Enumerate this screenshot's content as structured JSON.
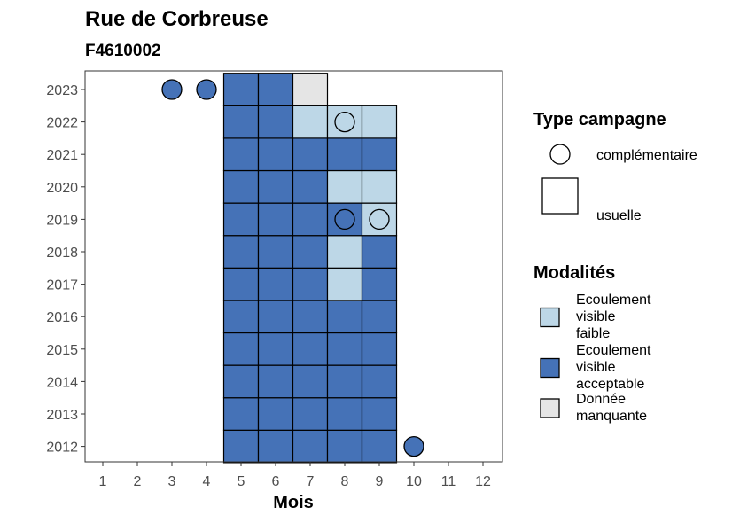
{
  "chart_data": {
    "type": "heatmap",
    "title": "Rue de Corbreuse",
    "subtitle": "F4610002",
    "xlabel": "Mois",
    "ylabel": "",
    "x_ticks": [
      "1",
      "2",
      "3",
      "4",
      "5",
      "6",
      "7",
      "8",
      "9",
      "10",
      "11",
      "12"
    ],
    "y_ticks": [
      "2012",
      "2013",
      "2014",
      "2015",
      "2016",
      "2017",
      "2018",
      "2019",
      "2020",
      "2021",
      "2022",
      "2023"
    ],
    "grid": false,
    "legend_position": "right",
    "legends": {
      "type_campagne": {
        "title": "Type campagne",
        "items": [
          {
            "key": "complementaire",
            "label": "complémentaire",
            "shape": "circle"
          },
          {
            "key": "usuelle",
            "label": "usuelle",
            "shape": "square"
          }
        ]
      },
      "modalites": {
        "title": "Modalités",
        "items": [
          {
            "key": "faible",
            "label_lines": [
              "Ecoulement",
              "visible",
              "faible"
            ],
            "color": "#BDD7E7"
          },
          {
            "key": "acceptable",
            "label_lines": [
              "Ecoulement",
              "visible",
              "acceptable"
            ],
            "color": "#4572B7"
          },
          {
            "key": "manquante",
            "label_lines": [
              "Donnée",
              "manquante"
            ],
            "color": "#E5E5E5"
          }
        ]
      }
    },
    "observations": [
      {
        "year": 2012,
        "month": 5,
        "type": "usuelle",
        "modalite": "acceptable"
      },
      {
        "year": 2012,
        "month": 6,
        "type": "usuelle",
        "modalite": "acceptable"
      },
      {
        "year": 2012,
        "month": 7,
        "type": "usuelle",
        "modalite": "acceptable"
      },
      {
        "year": 2012,
        "month": 8,
        "type": "usuelle",
        "modalite": "acceptable"
      },
      {
        "year": 2012,
        "month": 9,
        "type": "usuelle",
        "modalite": "acceptable"
      },
      {
        "year": 2012,
        "month": 10,
        "type": "complementaire",
        "modalite": "acceptable"
      },
      {
        "year": 2013,
        "month": 5,
        "type": "usuelle",
        "modalite": "acceptable"
      },
      {
        "year": 2013,
        "month": 6,
        "type": "usuelle",
        "modalite": "acceptable"
      },
      {
        "year": 2013,
        "month": 7,
        "type": "usuelle",
        "modalite": "acceptable"
      },
      {
        "year": 2013,
        "month": 8,
        "type": "usuelle",
        "modalite": "acceptable"
      },
      {
        "year": 2013,
        "month": 9,
        "type": "usuelle",
        "modalite": "acceptable"
      },
      {
        "year": 2014,
        "month": 5,
        "type": "usuelle",
        "modalite": "acceptable"
      },
      {
        "year": 2014,
        "month": 6,
        "type": "usuelle",
        "modalite": "acceptable"
      },
      {
        "year": 2014,
        "month": 7,
        "type": "usuelle",
        "modalite": "acceptable"
      },
      {
        "year": 2014,
        "month": 8,
        "type": "usuelle",
        "modalite": "acceptable"
      },
      {
        "year": 2014,
        "month": 9,
        "type": "usuelle",
        "modalite": "acceptable"
      },
      {
        "year": 2015,
        "month": 5,
        "type": "usuelle",
        "modalite": "acceptable"
      },
      {
        "year": 2015,
        "month": 6,
        "type": "usuelle",
        "modalite": "acceptable"
      },
      {
        "year": 2015,
        "month": 7,
        "type": "usuelle",
        "modalite": "acceptable"
      },
      {
        "year": 2015,
        "month": 8,
        "type": "usuelle",
        "modalite": "acceptable"
      },
      {
        "year": 2015,
        "month": 9,
        "type": "usuelle",
        "modalite": "acceptable"
      },
      {
        "year": 2016,
        "month": 5,
        "type": "usuelle",
        "modalite": "acceptable"
      },
      {
        "year": 2016,
        "month": 6,
        "type": "usuelle",
        "modalite": "acceptable"
      },
      {
        "year": 2016,
        "month": 7,
        "type": "usuelle",
        "modalite": "acceptable"
      },
      {
        "year": 2016,
        "month": 8,
        "type": "usuelle",
        "modalite": "acceptable"
      },
      {
        "year": 2016,
        "month": 9,
        "type": "usuelle",
        "modalite": "acceptable"
      },
      {
        "year": 2017,
        "month": 5,
        "type": "usuelle",
        "modalite": "acceptable"
      },
      {
        "year": 2017,
        "month": 6,
        "type": "usuelle",
        "modalite": "acceptable"
      },
      {
        "year": 2017,
        "month": 7,
        "type": "usuelle",
        "modalite": "acceptable"
      },
      {
        "year": 2017,
        "month": 8,
        "type": "usuelle",
        "modalite": "faible"
      },
      {
        "year": 2017,
        "month": 9,
        "type": "usuelle",
        "modalite": "acceptable"
      },
      {
        "year": 2018,
        "month": 5,
        "type": "usuelle",
        "modalite": "acceptable"
      },
      {
        "year": 2018,
        "month": 6,
        "type": "usuelle",
        "modalite": "acceptable"
      },
      {
        "year": 2018,
        "month": 7,
        "type": "usuelle",
        "modalite": "acceptable"
      },
      {
        "year": 2018,
        "month": 8,
        "type": "usuelle",
        "modalite": "faible"
      },
      {
        "year": 2018,
        "month": 9,
        "type": "usuelle",
        "modalite": "acceptable"
      },
      {
        "year": 2019,
        "month": 5,
        "type": "usuelle",
        "modalite": "acceptable"
      },
      {
        "year": 2019,
        "month": 6,
        "type": "usuelle",
        "modalite": "acceptable"
      },
      {
        "year": 2019,
        "month": 7,
        "type": "usuelle",
        "modalite": "acceptable"
      },
      {
        "year": 2019,
        "month": 8,
        "type": "usuelle",
        "modalite": "acceptable"
      },
      {
        "year": 2019,
        "month": 8,
        "type": "complementaire",
        "modalite": "acceptable"
      },
      {
        "year": 2019,
        "month": 9,
        "type": "usuelle",
        "modalite": "faible"
      },
      {
        "year": 2019,
        "month": 9,
        "type": "complementaire",
        "modalite": "faible"
      },
      {
        "year": 2020,
        "month": 5,
        "type": "usuelle",
        "modalite": "acceptable"
      },
      {
        "year": 2020,
        "month": 6,
        "type": "usuelle",
        "modalite": "acceptable"
      },
      {
        "year": 2020,
        "month": 7,
        "type": "usuelle",
        "modalite": "acceptable"
      },
      {
        "year": 2020,
        "month": 8,
        "type": "usuelle",
        "modalite": "faible"
      },
      {
        "year": 2020,
        "month": 9,
        "type": "usuelle",
        "modalite": "faible"
      },
      {
        "year": 2021,
        "month": 5,
        "type": "usuelle",
        "modalite": "acceptable"
      },
      {
        "year": 2021,
        "month": 6,
        "type": "usuelle",
        "modalite": "acceptable"
      },
      {
        "year": 2021,
        "month": 7,
        "type": "usuelle",
        "modalite": "acceptable"
      },
      {
        "year": 2021,
        "month": 8,
        "type": "usuelle",
        "modalite": "acceptable"
      },
      {
        "year": 2021,
        "month": 9,
        "type": "usuelle",
        "modalite": "acceptable"
      },
      {
        "year": 2022,
        "month": 5,
        "type": "usuelle",
        "modalite": "acceptable"
      },
      {
        "year": 2022,
        "month": 6,
        "type": "usuelle",
        "modalite": "acceptable"
      },
      {
        "year": 2022,
        "month": 7,
        "type": "usuelle",
        "modalite": "faible"
      },
      {
        "year": 2022,
        "month": 8,
        "type": "usuelle",
        "modalite": "faible"
      },
      {
        "year": 2022,
        "month": 8,
        "type": "complementaire",
        "modalite": "faible"
      },
      {
        "year": 2022,
        "month": 9,
        "type": "usuelle",
        "modalite": "faible"
      },
      {
        "year": 2023,
        "month": 3,
        "type": "complementaire",
        "modalite": "acceptable"
      },
      {
        "year": 2023,
        "month": 4,
        "type": "complementaire",
        "modalite": "acceptable"
      },
      {
        "year": 2023,
        "month": 5,
        "type": "usuelle",
        "modalite": "acceptable"
      },
      {
        "year": 2023,
        "month": 6,
        "type": "usuelle",
        "modalite": "acceptable"
      },
      {
        "year": 2023,
        "month": 7,
        "type": "usuelle",
        "modalite": "manquante"
      }
    ]
  }
}
